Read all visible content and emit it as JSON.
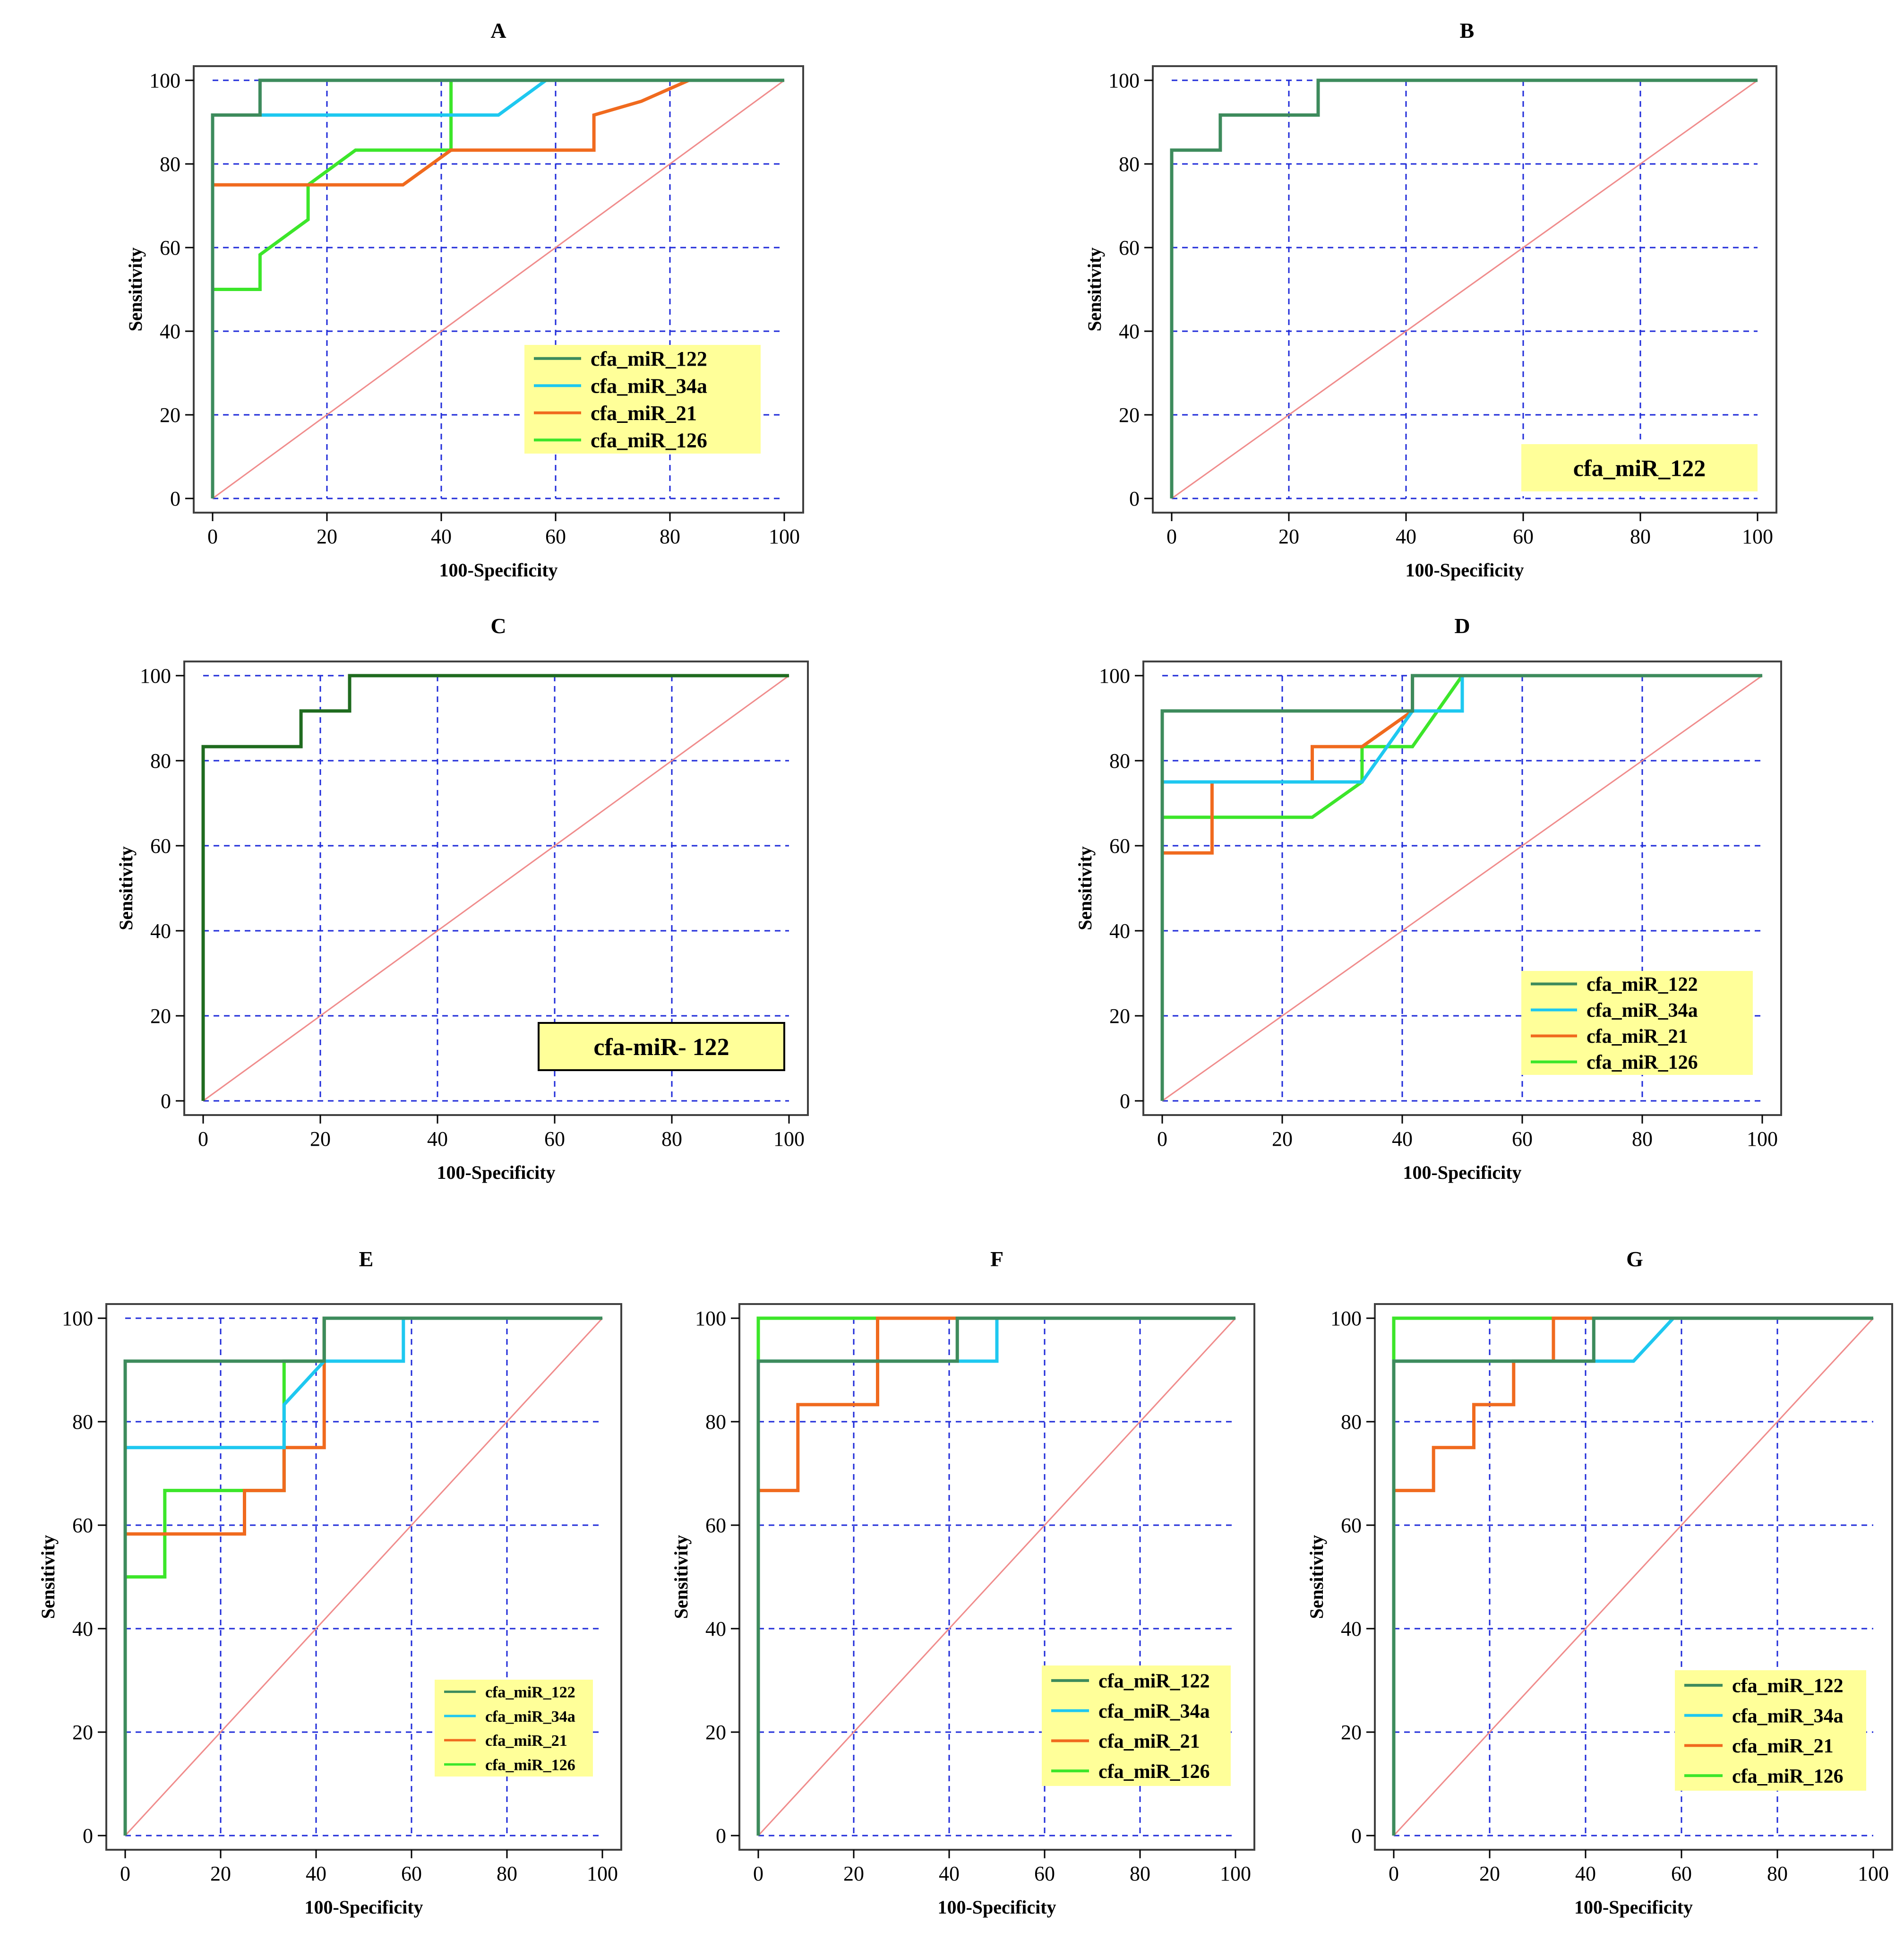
{
  "chart_data": [
    {
      "panel": "A",
      "type": "line",
      "title": "A",
      "xlabel": "100-Specificity",
      "ylabel": "Sensitivity",
      "xlim": [
        0,
        100
      ],
      "ylim": [
        0,
        100
      ],
      "xticks": [
        0,
        20,
        40,
        60,
        80,
        100
      ],
      "yticks": [
        0,
        20,
        40,
        60,
        80,
        100
      ],
      "grid": true,
      "legend_position": "bottom-right",
      "legend_boxed": false,
      "series": [
        {
          "name": "cfa_miR_122",
          "color": "#3d8b5c",
          "points": [
            [
              0,
              0
            ],
            [
              0,
              91.7
            ],
            [
              8.3,
              91.7
            ],
            [
              8.3,
              100
            ],
            [
              100,
              100
            ]
          ]
        },
        {
          "name": "cfa_miR_34a",
          "color": "#1ec8f0",
          "points": [
            [
              0,
              0
            ],
            [
              0,
              91.7
            ],
            [
              50,
              91.7
            ],
            [
              58.3,
              100
            ],
            [
              100,
              100
            ]
          ]
        },
        {
          "name": "cfa_miR_21",
          "color": "#f06a1e",
          "points": [
            [
              0,
              0
            ],
            [
              0,
              75
            ],
            [
              33.3,
              75
            ],
            [
              41.7,
              83.3
            ],
            [
              66.7,
              83.3
            ],
            [
              66.7,
              91.7
            ],
            [
              75,
              95
            ],
            [
              83.3,
              100
            ],
            [
              100,
              100
            ]
          ]
        },
        {
          "name": "cfa_miR_126",
          "color": "#3ce62a",
          "points": [
            [
              0,
              0
            ],
            [
              0,
              50
            ],
            [
              8.3,
              50
            ],
            [
              8.3,
              58.3
            ],
            [
              16.7,
              66.7
            ],
            [
              16.7,
              75
            ],
            [
              25,
              83.3
            ],
            [
              41.7,
              83.3
            ],
            [
              41.7,
              100
            ],
            [
              100,
              100
            ]
          ]
        }
      ]
    },
    {
      "panel": "B",
      "type": "line",
      "title": "B",
      "xlabel": "100-Specificity",
      "ylabel": "Sensitivity",
      "xlim": [
        0,
        100
      ],
      "ylim": [
        0,
        100
      ],
      "xticks": [
        0,
        20,
        40,
        60,
        80,
        100
      ],
      "yticks": [
        0,
        20,
        40,
        60,
        80,
        100
      ],
      "grid": true,
      "legend_position": "bottom-right",
      "legend_boxed": false,
      "series": [
        {
          "name": "cfa_miR_122",
          "color": "#3d8b5c",
          "points": [
            [
              0,
              0
            ],
            [
              0,
              83.3
            ],
            [
              8.3,
              83.3
            ],
            [
              8.3,
              91.7
            ],
            [
              25,
              91.7
            ],
            [
              25,
              100
            ],
            [
              100,
              100
            ]
          ]
        }
      ]
    },
    {
      "panel": "C",
      "type": "line",
      "title": "C",
      "xlabel": "100-Specificity",
      "ylabel": "Sensitivity",
      "xlim": [
        0,
        100
      ],
      "ylim": [
        0,
        100
      ],
      "xticks": [
        0,
        20,
        40,
        60,
        80,
        100
      ],
      "yticks": [
        0,
        20,
        40,
        60,
        80,
        100
      ],
      "grid": true,
      "legend_position": "bottom-right",
      "legend_boxed": true,
      "series": [
        {
          "name": "cfa-miR- 122",
          "color": "#1f6b1f",
          "points": [
            [
              0,
              0
            ],
            [
              0,
              83.3
            ],
            [
              16.7,
              83.3
            ],
            [
              16.7,
              91.7
            ],
            [
              25,
              91.7
            ],
            [
              25,
              100
            ],
            [
              100,
              100
            ]
          ]
        }
      ]
    },
    {
      "panel": "D",
      "type": "line",
      "title": "D",
      "xlabel": "100-Specificity",
      "ylabel": "Sensitivity",
      "xlim": [
        0,
        100
      ],
      "ylim": [
        0,
        100
      ],
      "xticks": [
        0,
        20,
        40,
        60,
        80,
        100
      ],
      "yticks": [
        0,
        20,
        40,
        60,
        80,
        100
      ],
      "grid": true,
      "legend_position": "bottom-right",
      "legend_boxed": false,
      "series": [
        {
          "name": "cfa_miR_122",
          "color": "#3d8b5c",
          "points": [
            [
              0,
              0
            ],
            [
              0,
              91.7
            ],
            [
              41.7,
              91.7
            ],
            [
              41.7,
              100
            ],
            [
              100,
              100
            ]
          ]
        },
        {
          "name": "cfa_miR_34a",
          "color": "#1ec8f0",
          "points": [
            [
              0,
              0
            ],
            [
              0,
              75
            ],
            [
              33.3,
              75
            ],
            [
              41.7,
              91.7
            ],
            [
              50,
              91.7
            ],
            [
              50,
              100
            ],
            [
              100,
              100
            ]
          ]
        },
        {
          "name": "cfa_miR_21",
          "color": "#f06a1e",
          "points": [
            [
              0,
              0
            ],
            [
              0,
              58.3
            ],
            [
              8.3,
              58.3
            ],
            [
              8.3,
              75
            ],
            [
              25,
              75
            ],
            [
              25,
              83.3
            ],
            [
              33.3,
              83.3
            ],
            [
              41.7,
              91.7
            ],
            [
              41.7,
              100
            ],
            [
              50,
              100
            ]
          ]
        },
        {
          "name": "cfa_miR_126",
          "color": "#3ce62a",
          "points": [
            [
              0,
              0
            ],
            [
              0,
              66.7
            ],
            [
              25,
              66.7
            ],
            [
              33.3,
              75
            ],
            [
              33.3,
              83.3
            ],
            [
              41.7,
              83.3
            ],
            [
              50,
              100
            ],
            [
              100,
              100
            ]
          ]
        }
      ]
    },
    {
      "panel": "E",
      "type": "line",
      "title": "E",
      "xlabel": "100-Specificity",
      "ylabel": "Sensitivity",
      "xlim": [
        0,
        100
      ],
      "ylim": [
        0,
        100
      ],
      "xticks": [
        0,
        20,
        40,
        60,
        80,
        100
      ],
      "yticks": [
        0,
        20,
        40,
        60,
        80,
        100
      ],
      "grid": true,
      "legend_position": "bottom-right",
      "legend_boxed": false,
      "series": [
        {
          "name": "cfa_miR_122",
          "color": "#3d8b5c",
          "points": [
            [
              0,
              0
            ],
            [
              0,
              91.7
            ],
            [
              41.7,
              91.7
            ],
            [
              41.7,
              100
            ],
            [
              100,
              100
            ]
          ]
        },
        {
          "name": "cfa_miR_34a",
          "color": "#1ec8f0",
          "points": [
            [
              0,
              0
            ],
            [
              0,
              75
            ],
            [
              33.3,
              75
            ],
            [
              33.3,
              83.3
            ],
            [
              41.7,
              91.7
            ],
            [
              58.3,
              91.7
            ],
            [
              58.3,
              100
            ],
            [
              100,
              100
            ]
          ]
        },
        {
          "name": "cfa_miR_21",
          "color": "#f06a1e",
          "points": [
            [
              0,
              0
            ],
            [
              0,
              58.3
            ],
            [
              25,
              58.3
            ],
            [
              25,
              66.7
            ],
            [
              33.3,
              66.7
            ],
            [
              33.3,
              75
            ],
            [
              41.7,
              75
            ],
            [
              41.7,
              100
            ],
            [
              100,
              100
            ]
          ]
        },
        {
          "name": "cfa_miR_126",
          "color": "#3ce62a",
          "points": [
            [
              0,
              0
            ],
            [
              0,
              50
            ],
            [
              8.3,
              50
            ],
            [
              8.3,
              66.7
            ],
            [
              33.3,
              66.7
            ],
            [
              33.3,
              91.7
            ],
            [
              41.7,
              91.7
            ],
            [
              41.7,
              100
            ],
            [
              100,
              100
            ]
          ]
        }
      ]
    },
    {
      "panel": "F",
      "type": "line",
      "title": "F",
      "xlabel": "100-Specificity",
      "ylabel": "Sensitivity",
      "xlim": [
        0,
        100
      ],
      "ylim": [
        0,
        100
      ],
      "xticks": [
        0,
        20,
        40,
        60,
        80,
        100
      ],
      "yticks": [
        0,
        20,
        40,
        60,
        80,
        100
      ],
      "grid": true,
      "legend_position": "bottom-right",
      "legend_boxed": false,
      "series": [
        {
          "name": "cfa_miR_122",
          "color": "#3d8b5c",
          "points": [
            [
              0,
              0
            ],
            [
              0,
              91.7
            ],
            [
              41.7,
              91.7
            ],
            [
              41.7,
              100
            ],
            [
              100,
              100
            ]
          ]
        },
        {
          "name": "cfa_miR_34a",
          "color": "#1ec8f0",
          "points": [
            [
              0,
              0
            ],
            [
              0,
              91.7
            ],
            [
              50,
              91.7
            ],
            [
              50,
              100
            ],
            [
              100,
              100
            ]
          ]
        },
        {
          "name": "cfa_miR_21",
          "color": "#f06a1e",
          "points": [
            [
              0,
              0
            ],
            [
              0,
              66.7
            ],
            [
              8.3,
              66.7
            ],
            [
              8.3,
              83.3
            ],
            [
              25,
              83.3
            ],
            [
              25,
              100
            ],
            [
              100,
              100
            ]
          ]
        },
        {
          "name": "cfa_miR_126",
          "color": "#3ce62a",
          "points": [
            [
              0,
              0
            ],
            [
              0,
              100
            ],
            [
              100,
              100
            ]
          ]
        }
      ]
    },
    {
      "panel": "G",
      "type": "line",
      "title": "G",
      "xlabel": "100-Specificity",
      "ylabel": "Sensitivity",
      "xlim": [
        0,
        100
      ],
      "ylim": [
        0,
        100
      ],
      "xticks": [
        0,
        20,
        40,
        60,
        80,
        100
      ],
      "yticks": [
        0,
        20,
        40,
        60,
        80,
        100
      ],
      "grid": true,
      "legend_position": "bottom-right",
      "legend_boxed": false,
      "series": [
        {
          "name": "cfa_miR_122",
          "color": "#3d8b5c",
          "points": [
            [
              0,
              0
            ],
            [
              0,
              91.7
            ],
            [
              41.7,
              91.7
            ],
            [
              41.7,
              100
            ],
            [
              100,
              100
            ]
          ]
        },
        {
          "name": "cfa_miR_34a",
          "color": "#1ec8f0",
          "points": [
            [
              0,
              0
            ],
            [
              0,
              91.7
            ],
            [
              50,
              91.7
            ],
            [
              58.3,
              100
            ],
            [
              100,
              100
            ]
          ]
        },
        {
          "name": "cfa_miR_21",
          "color": "#f06a1e",
          "points": [
            [
              0,
              0
            ],
            [
              0,
              66.7
            ],
            [
              8.3,
              66.7
            ],
            [
              8.3,
              75
            ],
            [
              16.7,
              75
            ],
            [
              16.7,
              83.3
            ],
            [
              25,
              83.3
            ],
            [
              25,
              91.7
            ],
            [
              33.3,
              91.7
            ],
            [
              33.3,
              100
            ],
            [
              100,
              100
            ]
          ]
        },
        {
          "name": "cfa_miR_126",
          "color": "#3ce62a",
          "points": [
            [
              0,
              0
            ],
            [
              0,
              100
            ],
            [
              100,
              100
            ]
          ]
        }
      ]
    }
  ],
  "style": {
    "grid_color": "#1f2bd9",
    "diagonal_color": "#f08c8c",
    "legend_bg": "#ffff99",
    "frame_color": "#404040"
  }
}
